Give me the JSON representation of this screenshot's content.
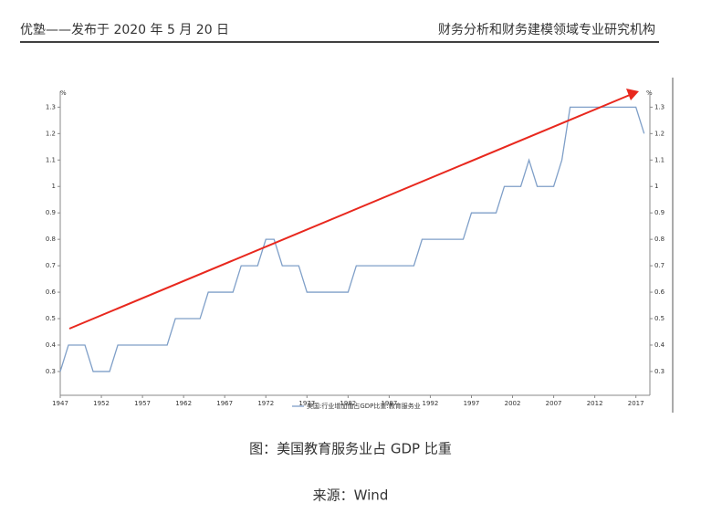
{
  "header": {
    "left": "优塾——发布于 2020 年 5 月 20 日",
    "right": "财务分析和财务建模领域专业研究机构"
  },
  "chart_data": {
    "type": "line",
    "y_unit": "%",
    "y2_unit": "%",
    "x": [
      1947,
      1948,
      1949,
      1950,
      1951,
      1952,
      1953,
      1954,
      1955,
      1956,
      1957,
      1958,
      1959,
      1960,
      1961,
      1962,
      1963,
      1964,
      1965,
      1966,
      1967,
      1968,
      1969,
      1970,
      1971,
      1972,
      1973,
      1974,
      1975,
      1976,
      1977,
      1978,
      1979,
      1980,
      1981,
      1982,
      1983,
      1984,
      1985,
      1986,
      1987,
      1988,
      1989,
      1990,
      1991,
      1992,
      1993,
      1994,
      1995,
      1996,
      1997,
      1998,
      1999,
      2000,
      2001,
      2002,
      2003,
      2004,
      2005,
      2006,
      2007,
      2008,
      2009,
      2010,
      2011,
      2012,
      2013,
      2014,
      2015,
      2016,
      2017,
      2018
    ],
    "series": [
      {
        "name": "美国:行业增加值占GDP比重:教育服务业",
        "color": "#7f9fc8",
        "values": [
          0.3,
          0.4,
          0.4,
          0.4,
          0.3,
          0.3,
          0.3,
          0.4,
          0.4,
          0.4,
          0.4,
          0.4,
          0.4,
          0.4,
          0.5,
          0.5,
          0.5,
          0.5,
          0.6,
          0.6,
          0.6,
          0.6,
          0.7,
          0.7,
          0.7,
          0.8,
          0.8,
          0.7,
          0.7,
          0.7,
          0.6,
          0.6,
          0.6,
          0.6,
          0.6,
          0.6,
          0.7,
          0.7,
          0.7,
          0.7,
          0.7,
          0.7,
          0.7,
          0.7,
          0.8,
          0.8,
          0.8,
          0.8,
          0.8,
          0.8,
          0.9,
          0.9,
          0.9,
          0.9,
          1.0,
          1.0,
          1.0,
          1.1,
          1.0,
          1.0,
          1.0,
          1.1,
          1.3,
          1.3,
          1.3,
          1.3,
          1.3,
          1.3,
          1.3,
          1.3,
          1.3,
          1.2
        ]
      }
    ],
    "xlim": [
      1947,
      2018.7
    ],
    "xticks": [
      1947,
      1952,
      1957,
      1962,
      1967,
      1972,
      1977,
      1982,
      1987,
      1992,
      1997,
      2002,
      2007,
      2012,
      2017
    ],
    "ylim": [
      0.21,
      1.36
    ],
    "yticks": [
      0.3,
      0.4,
      0.5,
      0.6,
      0.7,
      0.8,
      0.9,
      1.0,
      1.1,
      1.2,
      1.3
    ],
    "y2lim": [
      0.21,
      1.36
    ],
    "y2ticks": [
      0.3,
      0.4,
      0.5,
      0.6,
      0.7,
      0.8,
      0.9,
      1.0,
      1.1,
      1.2,
      1.3
    ]
  },
  "caption": "图：美国教育服务业占 GDP 比重",
  "source": "来源：Wind"
}
